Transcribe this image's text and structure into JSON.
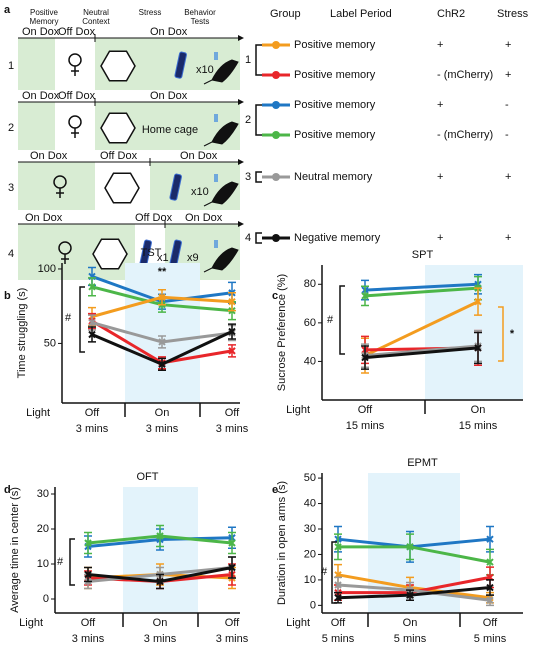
{
  "panel_labels": [
    "a",
    "b",
    "c",
    "d",
    "e"
  ],
  "protocol": {
    "headers": [
      "Positive Memory",
      "Neutral Context",
      "Stress",
      "Behavior Tests"
    ],
    "rows": [
      {
        "id": "1",
        "labels": [
          "On Dox",
          "Off Dox",
          "On Dox"
        ],
        "counts": [
          "x10"
        ]
      },
      {
        "id": "2",
        "labels": [
          "On Dox",
          "Off Dox",
          "On Dox"
        ],
        "note": "Home cage",
        "counts": []
      },
      {
        "id": "3",
        "labels": [
          "On Dox",
          "Off Dox",
          "On Dox"
        ],
        "counts": [
          "x10"
        ]
      },
      {
        "id": "4",
        "labels": [
          "On Dox",
          "Off Dox",
          "On Dox"
        ],
        "counts": [
          "x1",
          "x9"
        ]
      }
    ]
  },
  "groups": {
    "headers": [
      "Group",
      "Label Period",
      "ChR2",
      "Stress"
    ],
    "rows": [
      {
        "label": "Positive memory",
        "chr2": "+",
        "stress": "+",
        "color": "#f39c1f"
      },
      {
        "label": "Positive memory",
        "chr2": "- (mCherry)",
        "stress": "+",
        "color": "#e8262a"
      },
      {
        "label": "Positive memory",
        "chr2": "+",
        "stress": "-",
        "color": "#1f77c4"
      },
      {
        "label": "Positive memory",
        "chr2": "- (mCherry)",
        "stress": "-",
        "color": "#4cb648"
      },
      {
        "label": "Neutral memory",
        "chr2": "+",
        "stress": "+",
        "color": "#999999"
      },
      {
        "label": "Negative memory",
        "chr2": "+",
        "stress": "+",
        "color": "#111111"
      }
    ],
    "ids": [
      "1",
      "2",
      "3",
      "4"
    ]
  },
  "chart_data": [
    {
      "type": "line",
      "title": "TST",
      "ylabel": "Time struggling (s)",
      "light_label": "Light",
      "categories": [
        "Off",
        "On",
        "Off"
      ],
      "sublabels": [
        "3 mins",
        "3 mins",
        "3 mins"
      ],
      "ylim": [
        10,
        104
      ],
      "yticks": [
        50,
        100
      ],
      "annotations": [
        "#",
        "**"
      ],
      "series": [
        {
          "color": "#1f77c4",
          "values": [
            95,
            78,
            84
          ],
          "errors": [
            6,
            5,
            7
          ]
        },
        {
          "color": "#4cb648",
          "values": [
            88,
            76,
            72
          ],
          "errors": [
            6,
            5,
            6
          ]
        },
        {
          "color": "#f39c1f",
          "values": [
            68,
            81,
            78
          ],
          "errors": [
            6,
            5,
            6
          ]
        },
        {
          "color": "#e8262a",
          "values": [
            65,
            37,
            45
          ],
          "errors": [
            5,
            4,
            4
          ]
        },
        {
          "color": "#999999",
          "values": [
            64,
            51,
            57
          ],
          "errors": [
            5,
            4,
            5
          ]
        },
        {
          "color": "#111111",
          "values": [
            56,
            36,
            58
          ],
          "errors": [
            5,
            4,
            5
          ]
        }
      ]
    },
    {
      "type": "line",
      "title": "SPT",
      "ylabel": "Sucrose Preference (%)",
      "light_label": "Light",
      "categories": [
        "Off",
        "On"
      ],
      "sublabels": [
        "15 mins",
        "15 mins"
      ],
      "ylim": [
        20,
        90
      ],
      "yticks": [
        40,
        60,
        80
      ],
      "annotations": [
        "#",
        "*"
      ],
      "series": [
        {
          "color": "#1f77c4",
          "values": [
            77,
            80
          ],
          "errors": [
            5,
            5
          ]
        },
        {
          "color": "#4cb648",
          "values": [
            74,
            78
          ],
          "errors": [
            5,
            6
          ]
        },
        {
          "color": "#f39c1f",
          "values": [
            43,
            71
          ],
          "errors": [
            9,
            7
          ]
        },
        {
          "color": "#e8262a",
          "values": [
            46,
            47
          ],
          "errors": [
            7,
            9
          ]
        },
        {
          "color": "#999999",
          "values": [
            43,
            48
          ],
          "errors": [
            6,
            8
          ]
        },
        {
          "color": "#111111",
          "values": [
            42,
            47
          ],
          "errors": [
            6,
            8
          ]
        }
      ]
    },
    {
      "type": "line",
      "title": "OFT",
      "ylabel": "Average time in center (s)",
      "light_label": "Light",
      "categories": [
        "Off",
        "On",
        "Off"
      ],
      "sublabels": [
        "3 mins",
        "3 mins",
        "3 mins"
      ],
      "ylim": [
        -4,
        32
      ],
      "yticks": [
        0,
        10,
        20,
        30
      ],
      "annotations": [
        "#"
      ],
      "series": [
        {
          "color": "#1f77c4",
          "values": [
            15,
            17,
            17.5
          ],
          "errors": [
            3,
            3,
            3
          ]
        },
        {
          "color": "#4cb648",
          "values": [
            16,
            18,
            16
          ],
          "errors": [
            3,
            3,
            3
          ]
        },
        {
          "color": "#f39c1f",
          "values": [
            6,
            7,
            6
          ],
          "errors": [
            3,
            3,
            3
          ]
        },
        {
          "color": "#e8262a",
          "values": [
            6,
            5,
            7
          ],
          "errors": [
            2,
            2,
            3
          ]
        },
        {
          "color": "#999999",
          "values": [
            5,
            7,
            9
          ],
          "errors": [
            2,
            2,
            3
          ]
        },
        {
          "color": "#111111",
          "values": [
            7,
            5,
            9
          ],
          "errors": [
            2,
            2,
            3
          ]
        }
      ]
    },
    {
      "type": "line",
      "title": "EPMT",
      "ylabel": "Duration in open arms (s)",
      "light_label": "Light",
      "categories": [
        "Off",
        "On",
        "Off"
      ],
      "sublabels": [
        "5 mins",
        "5 mins",
        "5 mins"
      ],
      "ylim": [
        -3,
        52
      ],
      "yticks": [
        0,
        10,
        20,
        30,
        40,
        50
      ],
      "annotations": [
        "#"
      ],
      "series": [
        {
          "color": "#1f77c4",
          "values": [
            26,
            23,
            26
          ],
          "errors": [
            5,
            6,
            5
          ]
        },
        {
          "color": "#4cb648",
          "values": [
            23,
            23,
            17
          ],
          "errors": [
            5,
            5,
            5
          ]
        },
        {
          "color": "#f39c1f",
          "values": [
            12,
            7,
            3
          ],
          "errors": [
            4,
            4,
            2
          ]
        },
        {
          "color": "#e8262a",
          "values": [
            5,
            5,
            11
          ],
          "errors": [
            3,
            3,
            4
          ]
        },
        {
          "color": "#999999",
          "values": [
            8,
            6,
            2
          ],
          "errors": [
            3,
            3,
            2
          ]
        },
        {
          "color": "#111111",
          "values": [
            3,
            4,
            7
          ],
          "errors": [
            2,
            2,
            3
          ]
        }
      ]
    }
  ]
}
